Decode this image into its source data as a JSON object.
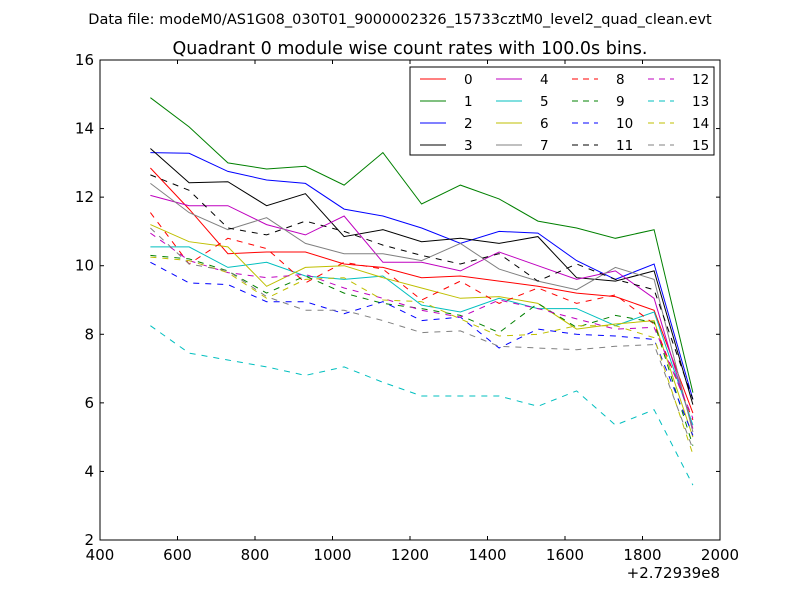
{
  "header": {
    "data_file": "Data file: modeM0/AS1G08_030T01_9000002326_15733cztM0_level2_quad_clean.evt"
  },
  "chart_data": {
    "type": "line",
    "title": "Quadrant 0 module wise count rates with 100.0s bins.",
    "xlabel": "",
    "ylabel": "",
    "x_offset_label": "+2.72939e8",
    "xlim": [
      400,
      2000
    ],
    "ylim": [
      2,
      16
    ],
    "xticks": [
      400,
      600,
      800,
      1000,
      1200,
      1400,
      1600,
      1800,
      2000
    ],
    "yticks": [
      2,
      4,
      6,
      8,
      10,
      12,
      14,
      16
    ],
    "grid": false,
    "legend_position": "top-right",
    "legend_columns": 4,
    "x": [
      530,
      630,
      730,
      830,
      930,
      1030,
      1130,
      1230,
      1330,
      1430,
      1530,
      1630,
      1730,
      1830,
      1930
    ],
    "series": [
      {
        "name": "0",
        "color": "#ff0000",
        "dash": "solid",
        "values": [
          12.85,
          11.65,
          10.35,
          10.4,
          10.4,
          10.05,
          9.95,
          9.65,
          9.7,
          9.55,
          9.4,
          9.2,
          9.1,
          8.7,
          5.7
        ]
      },
      {
        "name": "1",
        "color": "#008000",
        "dash": "solid",
        "values": [
          14.9,
          14.05,
          13.0,
          12.82,
          12.9,
          12.35,
          13.3,
          11.8,
          12.35,
          11.95,
          11.3,
          11.1,
          10.8,
          11.05,
          6.3
        ]
      },
      {
        "name": "2",
        "color": "#0000ff",
        "dash": "solid",
        "values": [
          13.3,
          13.28,
          12.75,
          12.5,
          12.4,
          11.65,
          11.45,
          11.1,
          10.65,
          11.0,
          10.95,
          10.15,
          9.6,
          10.05,
          6.1
        ]
      },
      {
        "name": "3",
        "color": "#000000",
        "dash": "solid",
        "values": [
          13.42,
          12.42,
          12.45,
          11.75,
          12.1,
          10.85,
          11.05,
          10.7,
          10.8,
          10.65,
          10.85,
          9.65,
          9.55,
          9.85,
          5.95
        ]
      },
      {
        "name": "4",
        "color": "#bf00bf",
        "dash": "solid",
        "values": [
          12.05,
          11.75,
          11.75,
          11.2,
          10.9,
          11.45,
          10.1,
          10.1,
          9.85,
          10.4,
          10.0,
          9.6,
          9.85,
          9.05,
          5.25
        ]
      },
      {
        "name": "5",
        "color": "#00bfbf",
        "dash": "solid",
        "values": [
          10.55,
          10.55,
          9.95,
          10.1,
          9.7,
          9.6,
          9.7,
          8.85,
          8.65,
          9.05,
          8.75,
          8.75,
          8.25,
          8.65,
          5.35
        ]
      },
      {
        "name": "6",
        "color": "#bfbf00",
        "dash": "solid",
        "values": [
          11.2,
          10.7,
          10.55,
          9.4,
          9.95,
          10.0,
          9.65,
          9.35,
          9.05,
          9.1,
          8.9,
          8.15,
          8.3,
          8.4,
          5.0
        ]
      },
      {
        "name": "7",
        "color": "#808080",
        "dash": "solid",
        "values": [
          12.4,
          11.55,
          11.05,
          11.4,
          10.65,
          10.35,
          10.35,
          10.15,
          10.65,
          9.9,
          9.55,
          9.3,
          9.95,
          9.6,
          5.15
        ]
      },
      {
        "name": "8",
        "color": "#ff0000",
        "dash": "dashed",
        "values": [
          11.55,
          10.05,
          10.8,
          10.5,
          9.5,
          10.1,
          9.9,
          9.0,
          9.55,
          8.9,
          9.35,
          8.9,
          9.15,
          8.3,
          5.5
        ]
      },
      {
        "name": "9",
        "color": "#008000",
        "dash": "dashed",
        "values": [
          10.3,
          10.2,
          9.85,
          9.2,
          9.7,
          9.2,
          8.9,
          8.75,
          8.55,
          8.05,
          8.9,
          8.2,
          8.55,
          8.35,
          4.75
        ]
      },
      {
        "name": "10",
        "color": "#0000ff",
        "dash": "dashed",
        "values": [
          10.1,
          9.5,
          9.45,
          8.95,
          8.95,
          8.6,
          8.95,
          8.4,
          8.5,
          7.6,
          8.15,
          8.0,
          7.95,
          7.85,
          5.05
        ]
      },
      {
        "name": "11",
        "color": "#000000",
        "dash": "dashed",
        "values": [
          12.65,
          12.2,
          11.1,
          10.9,
          11.3,
          11.0,
          10.6,
          10.3,
          10.05,
          10.35,
          9.55,
          10.05,
          9.6,
          9.3,
          6.1
        ]
      },
      {
        "name": "12",
        "color": "#bf00bf",
        "dash": "dashed",
        "values": [
          10.95,
          10.15,
          9.8,
          9.65,
          9.75,
          9.35,
          9.05,
          8.7,
          8.5,
          9.0,
          8.75,
          8.45,
          8.15,
          8.2,
          5.55
        ]
      },
      {
        "name": "13",
        "color": "#00bfbf",
        "dash": "dashed",
        "values": [
          8.25,
          7.45,
          7.25,
          7.05,
          6.8,
          7.05,
          6.6,
          6.2,
          6.2,
          6.2,
          5.9,
          6.35,
          5.35,
          5.8,
          3.6
        ]
      },
      {
        "name": "14",
        "color": "#bfbf00",
        "dash": "dashed",
        "values": [
          10.25,
          10.15,
          9.8,
          9.05,
          9.6,
          9.65,
          9.0,
          8.95,
          8.45,
          7.95,
          8.0,
          8.25,
          8.25,
          7.9,
          4.5
        ]
      },
      {
        "name": "15",
        "color": "#808080",
        "dash": "dashed",
        "values": [
          11.1,
          10.05,
          9.85,
          9.1,
          8.7,
          8.7,
          8.4,
          8.05,
          8.1,
          7.65,
          7.6,
          7.55,
          7.65,
          7.7,
          4.65
        ]
      }
    ]
  }
}
